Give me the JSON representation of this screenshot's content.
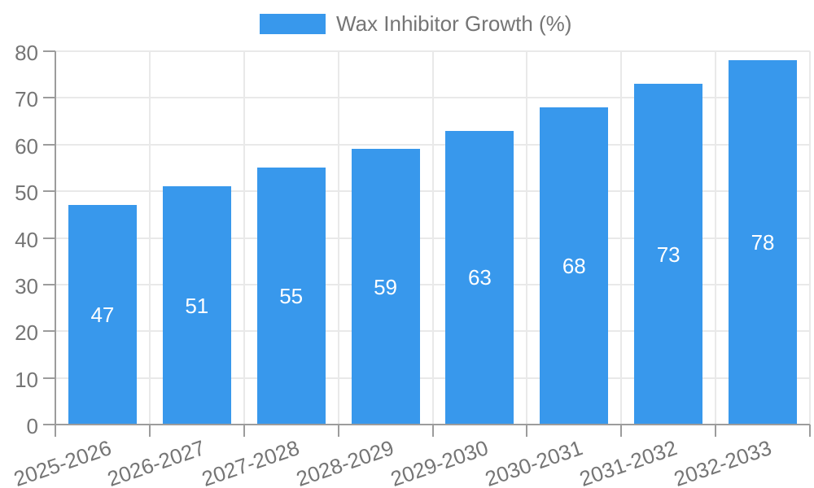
{
  "legend": {
    "label": "Wax Inhibitor Growth (%)"
  },
  "colors": {
    "bar": "#3898ec",
    "grid": "#e9e9e9",
    "axis": "#9c9c9c",
    "text": "#757575",
    "value_label": "#ffffff"
  },
  "chart_data": {
    "type": "bar",
    "title": "Wax Inhibitor Growth (%)",
    "categories": [
      "2025-2026",
      "2026-2027",
      "2027-2028",
      "2028-2029",
      "2029-2030",
      "2030-2031",
      "2031-2032",
      "2032-2033"
    ],
    "values": [
      47,
      51,
      55,
      59,
      63,
      68,
      73,
      78
    ],
    "xlabel": "",
    "ylabel": "",
    "ylim": [
      0,
      80
    ],
    "yticks": [
      0,
      10,
      20,
      30,
      40,
      50,
      60,
      70,
      80
    ],
    "grid": true,
    "legend_position": "top-center",
    "value_labels": "inside-center"
  }
}
